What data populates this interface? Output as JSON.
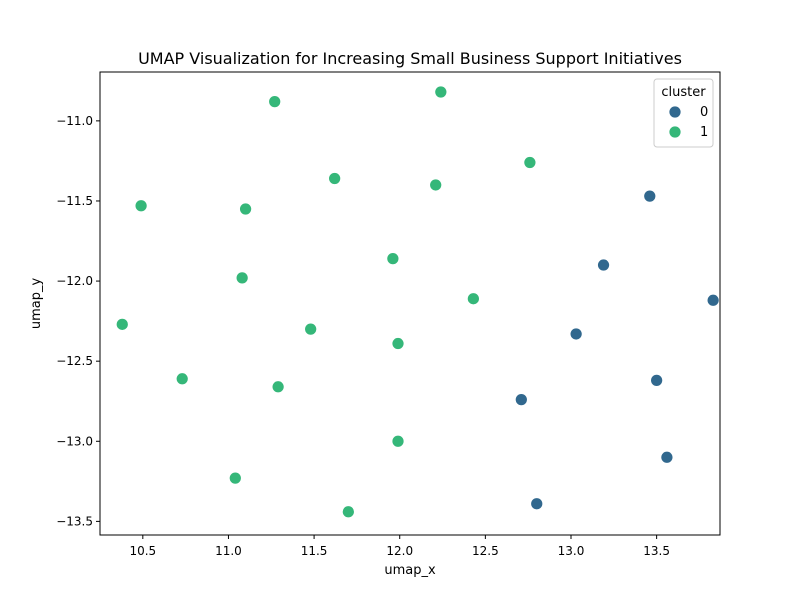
{
  "chart_data": {
    "type": "scatter",
    "title": "UMAP Visualization for Increasing Small Business Support Initiatives",
    "xlabel": "umap_x",
    "ylabel": "umap_y",
    "xlim": [
      10.25,
      13.87
    ],
    "ylim": [
      -13.585,
      -10.695
    ],
    "xticks": [
      10.5,
      11.0,
      11.5,
      12.0,
      12.5,
      13.0,
      13.5
    ],
    "xtick_labels": [
      "10.5",
      "11.0",
      "11.5",
      "12.0",
      "12.5",
      "13.0",
      "13.5"
    ],
    "yticks": [
      -11.0,
      -11.5,
      -12.0,
      -12.5,
      -13.0,
      -13.5
    ],
    "ytick_labels": [
      "−11.0",
      "−11.5",
      "−12.0",
      "−12.5",
      "−13.0",
      "−13.5"
    ],
    "grid": false,
    "legend": {
      "title": "cluster",
      "placement": "top-right",
      "entries": [
        {
          "label": "0",
          "color": "#31688e"
        },
        {
          "label": "1",
          "color": "#35b779"
        }
      ]
    },
    "series": [
      {
        "name": "0",
        "color": "#31688e",
        "points": [
          {
            "x": 13.46,
            "y": -11.47
          },
          {
            "x": 13.19,
            "y": -11.9
          },
          {
            "x": 13.83,
            "y": -12.12
          },
          {
            "x": 13.03,
            "y": -12.33
          },
          {
            "x": 13.5,
            "y": -12.62
          },
          {
            "x": 12.71,
            "y": -12.74
          },
          {
            "x": 13.56,
            "y": -13.1
          },
          {
            "x": 12.8,
            "y": -13.39
          }
        ]
      },
      {
        "name": "1",
        "color": "#35b779",
        "points": [
          {
            "x": 12.24,
            "y": -10.82
          },
          {
            "x": 11.27,
            "y": -10.88
          },
          {
            "x": 12.76,
            "y": -11.26
          },
          {
            "x": 11.62,
            "y": -11.36
          },
          {
            "x": 12.21,
            "y": -11.4
          },
          {
            "x": 10.49,
            "y": -11.53
          },
          {
            "x": 11.1,
            "y": -11.55
          },
          {
            "x": 11.96,
            "y": -11.86
          },
          {
            "x": 11.08,
            "y": -11.98
          },
          {
            "x": 12.43,
            "y": -12.11
          },
          {
            "x": 10.38,
            "y": -12.27
          },
          {
            "x": 11.48,
            "y": -12.3
          },
          {
            "x": 11.99,
            "y": -12.39
          },
          {
            "x": 10.73,
            "y": -12.61
          },
          {
            "x": 11.29,
            "y": -12.66
          },
          {
            "x": 11.99,
            "y": -13.0
          },
          {
            "x": 11.04,
            "y": -13.23
          },
          {
            "x": 11.7,
            "y": -13.44
          }
        ]
      }
    ]
  }
}
